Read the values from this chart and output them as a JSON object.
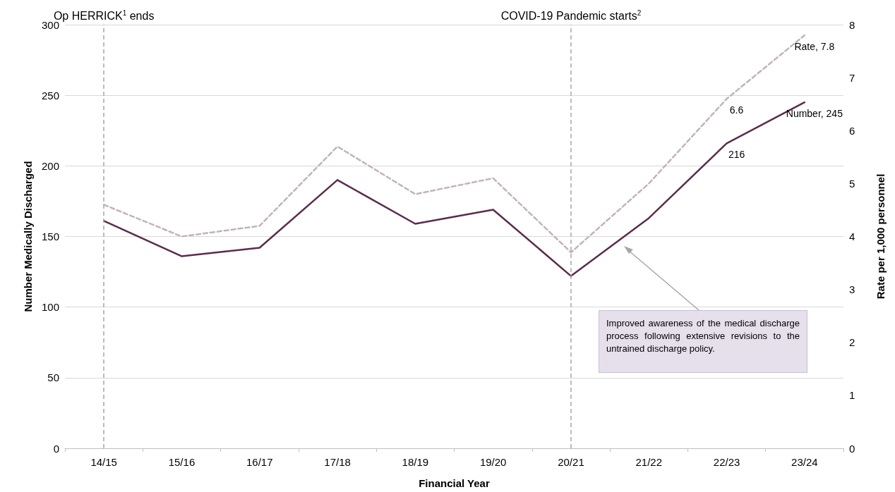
{
  "chart_data": {
    "type": "line",
    "xlabel": "Financial Year",
    "ylabel": "Number Medically Discharged",
    "y2label": "Rate per 1,000 personnel",
    "categories": [
      "14/15",
      "15/16",
      "16/17",
      "17/18",
      "18/19",
      "19/20",
      "20/21",
      "21/22",
      "22/23",
      "23/24"
    ],
    "series": [
      {
        "color": "#5b2c4c",
        "line_style": "solid",
        "values": [
          161,
          136,
          142,
          190,
          159,
          169,
          122,
          163,
          216,
          245
        ],
        "value_labels": [
          null,
          null,
          null,
          null,
          null,
          null,
          null,
          null,
          "216",
          "Number, 245"
        ]
      },
      {
        "color": "#c3b3b9",
        "line_style": "dashed",
        "axis": "y2",
        "values": [
          4.6,
          4.0,
          4.2,
          5.7,
          4.8,
          5.1,
          3.7,
          5.0,
          6.6,
          7.8
        ],
        "value_labels": [
          null,
          null,
          null,
          null,
          null,
          null,
          null,
          null,
          "6.6",
          "Rate, 7.8"
        ]
      }
    ],
    "ylim": [
      0,
      300
    ],
    "yticks": [
      0,
      50,
      100,
      150,
      200,
      250,
      300
    ],
    "y2lim": [
      0,
      8
    ],
    "y2ticks": [
      0,
      1,
      2,
      3,
      4,
      5,
      6,
      7,
      8
    ],
    "grid": "y",
    "marker": "none",
    "ref_lines": [
      {
        "axis": "x",
        "value": "14/15",
        "label": "Op HERRICK$^{1}$ ends",
        "color": "#a6a6a6",
        "line_style": "dashed"
      },
      {
        "axis": "x",
        "value": "20/21",
        "label": "COVID-19 Pandemic starts$^{2}$",
        "color": "#a6a6a6",
        "line_style": "dashed"
      }
    ],
    "annotations": [
      "Improved awareness of the medical discharge process following extensive revisions to the untrained discharge policy."
    ]
  }
}
